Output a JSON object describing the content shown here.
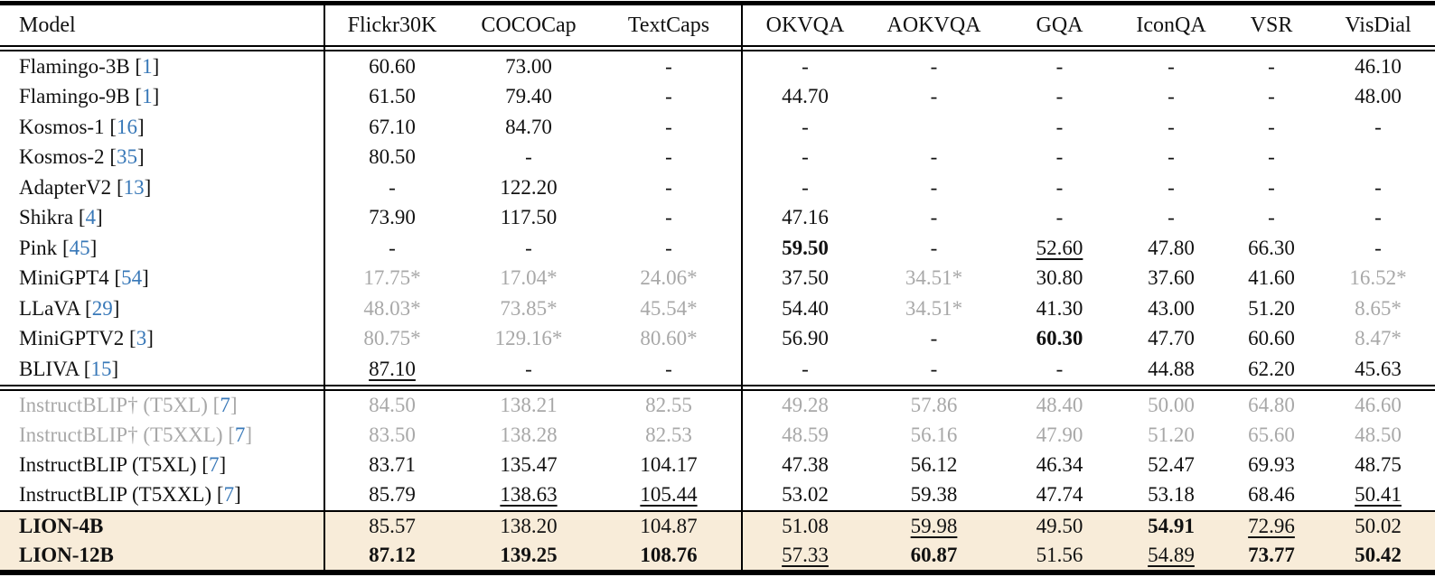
{
  "colors": {
    "highlight_row_bg": "#f8ecd9",
    "deemphasized_gray": "#a8a8a8",
    "citation_blue": "#3878b8",
    "rule_black": "#000000"
  },
  "table": {
    "columns": [
      "Model",
      "Flickr30K",
      "COCOCap",
      "TextCaps",
      "OKVQA",
      "AOKVQA",
      "GQA",
      "IconQA",
      "VSR",
      "VisDial"
    ],
    "sections": [
      {
        "highlight": false,
        "rows": [
          {
            "model": "Flamingo-3B",
            "cite": "1",
            "style": "normal",
            "cells": [
              {
                "t": "60.60",
                "f": ""
              },
              {
                "t": "73.00",
                "f": ""
              },
              {
                "t": "-",
                "f": ""
              },
              {
                "t": "-",
                "f": ""
              },
              {
                "t": "-",
                "f": ""
              },
              {
                "t": "-",
                "f": ""
              },
              {
                "t": "-",
                "f": ""
              },
              {
                "t": "-",
                "f": ""
              },
              {
                "t": "46.10",
                "f": ""
              }
            ]
          },
          {
            "model": "Flamingo-9B",
            "cite": "1",
            "style": "normal",
            "cells": [
              {
                "t": "61.50",
                "f": ""
              },
              {
                "t": "79.40",
                "f": ""
              },
              {
                "t": "-",
                "f": ""
              },
              {
                "t": "44.70",
                "f": ""
              },
              {
                "t": "-",
                "f": ""
              },
              {
                "t": "-",
                "f": ""
              },
              {
                "t": "-",
                "f": ""
              },
              {
                "t": "-",
                "f": ""
              },
              {
                "t": "48.00",
                "f": ""
              }
            ]
          },
          {
            "model": "Kosmos-1",
            "cite": "16",
            "style": "normal",
            "cells": [
              {
                "t": "67.10",
                "f": ""
              },
              {
                "t": "84.70",
                "f": ""
              },
              {
                "t": "-",
                "f": ""
              },
              {
                "t": "-",
                "f": ""
              },
              {
                "t": "",
                "f": ""
              },
              {
                "t": "-",
                "f": ""
              },
              {
                "t": "-",
                "f": ""
              },
              {
                "t": "-",
                "f": ""
              },
              {
                "t": "-",
                "f": ""
              }
            ]
          },
          {
            "model": "Kosmos-2",
            "cite": "35",
            "style": "normal",
            "cells": [
              {
                "t": "80.50",
                "f": ""
              },
              {
                "t": "-",
                "f": ""
              },
              {
                "t": "-",
                "f": ""
              },
              {
                "t": "-",
                "f": ""
              },
              {
                "t": "-",
                "f": ""
              },
              {
                "t": "-",
                "f": ""
              },
              {
                "t": "-",
                "f": ""
              },
              {
                "t": "-",
                "f": ""
              },
              {
                "t": "",
                "f": ""
              }
            ]
          },
          {
            "model": "AdapterV2",
            "cite": "13",
            "style": "normal",
            "cells": [
              {
                "t": "-",
                "f": ""
              },
              {
                "t": "122.20",
                "f": ""
              },
              {
                "t": "-",
                "f": ""
              },
              {
                "t": "-",
                "f": ""
              },
              {
                "t": "-",
                "f": ""
              },
              {
                "t": "-",
                "f": ""
              },
              {
                "t": "-",
                "f": ""
              },
              {
                "t": "-",
                "f": ""
              },
              {
                "t": "-",
                "f": ""
              }
            ]
          },
          {
            "model": "Shikra",
            "cite": "4",
            "style": "normal",
            "cells": [
              {
                "t": "73.90",
                "f": ""
              },
              {
                "t": "117.50",
                "f": ""
              },
              {
                "t": "-",
                "f": ""
              },
              {
                "t": "47.16",
                "f": ""
              },
              {
                "t": "-",
                "f": ""
              },
              {
                "t": "-",
                "f": ""
              },
              {
                "t": "-",
                "f": ""
              },
              {
                "t": "-",
                "f": ""
              },
              {
                "t": "-",
                "f": ""
              }
            ]
          },
          {
            "model": "Pink",
            "cite": "45",
            "style": "normal",
            "cells": [
              {
                "t": "-",
                "f": ""
              },
              {
                "t": "-",
                "f": ""
              },
              {
                "t": "-",
                "f": ""
              },
              {
                "t": "59.50",
                "f": "b"
              },
              {
                "t": "-",
                "f": ""
              },
              {
                "t": "52.60",
                "f": "u"
              },
              {
                "t": "47.80",
                "f": ""
              },
              {
                "t": "66.30",
                "f": ""
              },
              {
                "t": "-",
                "f": ""
              }
            ]
          },
          {
            "model": "MiniGPT4",
            "cite": "54",
            "style": "normal",
            "cells": [
              {
                "t": "17.75*",
                "f": "g"
              },
              {
                "t": "17.04*",
                "f": "g"
              },
              {
                "t": "24.06*",
                "f": "g"
              },
              {
                "t": "37.50",
                "f": ""
              },
              {
                "t": "34.51*",
                "f": "g"
              },
              {
                "t": "30.80",
                "f": ""
              },
              {
                "t": "37.60",
                "f": ""
              },
              {
                "t": "41.60",
                "f": ""
              },
              {
                "t": "16.52*",
                "f": "g"
              }
            ]
          },
          {
            "model": "LLaVA",
            "cite": "29",
            "style": "normal",
            "cells": [
              {
                "t": "48.03*",
                "f": "g"
              },
              {
                "t": "73.85*",
                "f": "g"
              },
              {
                "t": "45.54*",
                "f": "g"
              },
              {
                "t": "54.40",
                "f": ""
              },
              {
                "t": "34.51*",
                "f": "g"
              },
              {
                "t": "41.30",
                "f": ""
              },
              {
                "t": "43.00",
                "f": ""
              },
              {
                "t": "51.20",
                "f": ""
              },
              {
                "t": "8.65*",
                "f": "g"
              }
            ]
          },
          {
            "model": "MiniGPTV2",
            "cite": "3",
            "style": "normal",
            "cells": [
              {
                "t": "80.75*",
                "f": "g"
              },
              {
                "t": "129.16*",
                "f": "g"
              },
              {
                "t": "80.60*",
                "f": "g"
              },
              {
                "t": "56.90",
                "f": ""
              },
              {
                "t": "-",
                "f": ""
              },
              {
                "t": "60.30",
                "f": "b"
              },
              {
                "t": "47.70",
                "f": ""
              },
              {
                "t": "60.60",
                "f": ""
              },
              {
                "t": "8.47*",
                "f": "g"
              }
            ]
          },
          {
            "model": "BLIVA",
            "cite": "15",
            "style": "normal",
            "cells": [
              {
                "t": "87.10",
                "f": "u"
              },
              {
                "t": "-",
                "f": ""
              },
              {
                "t": "-",
                "f": ""
              },
              {
                "t": "-",
                "f": ""
              },
              {
                "t": "-",
                "f": ""
              },
              {
                "t": "-",
                "f": ""
              },
              {
                "t": "44.88",
                "f": ""
              },
              {
                "t": "62.20",
                "f": ""
              },
              {
                "t": "45.63",
                "f": ""
              }
            ]
          }
        ]
      },
      {
        "highlight": false,
        "rows": [
          {
            "model": "InstructBLIP† (T5XL)",
            "cite": "7",
            "style": "gray",
            "cells": [
              {
                "t": "84.50",
                "f": "g"
              },
              {
                "t": "138.21",
                "f": "g"
              },
              {
                "t": "82.55",
                "f": "g"
              },
              {
                "t": "49.28",
                "f": "g"
              },
              {
                "t": "57.86",
                "f": "g"
              },
              {
                "t": "48.40",
                "f": "g"
              },
              {
                "t": "50.00",
                "f": "g"
              },
              {
                "t": "64.80",
                "f": "g"
              },
              {
                "t": "46.60",
                "f": "g"
              }
            ]
          },
          {
            "model": "InstructBLIP† (T5XXL)",
            "cite": "7",
            "style": "gray",
            "cells": [
              {
                "t": "83.50",
                "f": "g"
              },
              {
                "t": "138.28",
                "f": "g"
              },
              {
                "t": "82.53",
                "f": "g"
              },
              {
                "t": "48.59",
                "f": "g"
              },
              {
                "t": "56.16",
                "f": "g"
              },
              {
                "t": "47.90",
                "f": "g"
              },
              {
                "t": "51.20",
                "f": "g"
              },
              {
                "t": "65.60",
                "f": "g"
              },
              {
                "t": "48.50",
                "f": "g"
              }
            ]
          },
          {
            "model": "InstructBLIP (T5XL)",
            "cite": "7",
            "style": "normal",
            "cells": [
              {
                "t": "83.71",
                "f": ""
              },
              {
                "t": "135.47",
                "f": ""
              },
              {
                "t": "104.17",
                "f": ""
              },
              {
                "t": "47.38",
                "f": ""
              },
              {
                "t": "56.12",
                "f": ""
              },
              {
                "t": "46.34",
                "f": ""
              },
              {
                "t": "52.47",
                "f": ""
              },
              {
                "t": "69.93",
                "f": ""
              },
              {
                "t": "48.75",
                "f": ""
              }
            ]
          },
          {
            "model": "InstructBLIP (T5XXL)",
            "cite": "7",
            "style": "normal",
            "cells": [
              {
                "t": "85.79",
                "f": ""
              },
              {
                "t": "138.63",
                "f": "u"
              },
              {
                "t": "105.44",
                "f": "u"
              },
              {
                "t": "53.02",
                "f": ""
              },
              {
                "t": "59.38",
                "f": ""
              },
              {
                "t": "47.74",
                "f": ""
              },
              {
                "t": "53.18",
                "f": ""
              },
              {
                "t": "68.46",
                "f": ""
              },
              {
                "t": "50.41",
                "f": "u"
              }
            ]
          }
        ]
      },
      {
        "highlight": true,
        "rows": [
          {
            "model": "LION-4B",
            "cite": "",
            "style": "bold",
            "cells": [
              {
                "t": "85.57",
                "f": ""
              },
              {
                "t": "138.20",
                "f": ""
              },
              {
                "t": "104.87",
                "f": ""
              },
              {
                "t": "51.08",
                "f": ""
              },
              {
                "t": "59.98",
                "f": "u"
              },
              {
                "t": "49.50",
                "f": ""
              },
              {
                "t": "54.91",
                "f": "b"
              },
              {
                "t": "72.96",
                "f": "u"
              },
              {
                "t": "50.02",
                "f": ""
              }
            ]
          },
          {
            "model": "LION-12B",
            "cite": "",
            "style": "bold",
            "cells": [
              {
                "t": "87.12",
                "f": "b"
              },
              {
                "t": "139.25",
                "f": "b"
              },
              {
                "t": "108.76",
                "f": "b"
              },
              {
                "t": "57.33",
                "f": "u"
              },
              {
                "t": "60.87",
                "f": "b"
              },
              {
                "t": "51.56",
                "f": ""
              },
              {
                "t": "54.89",
                "f": "u"
              },
              {
                "t": "73.77",
                "f": "b"
              },
              {
                "t": "50.42",
                "f": "b"
              }
            ]
          }
        ]
      }
    ]
  }
}
